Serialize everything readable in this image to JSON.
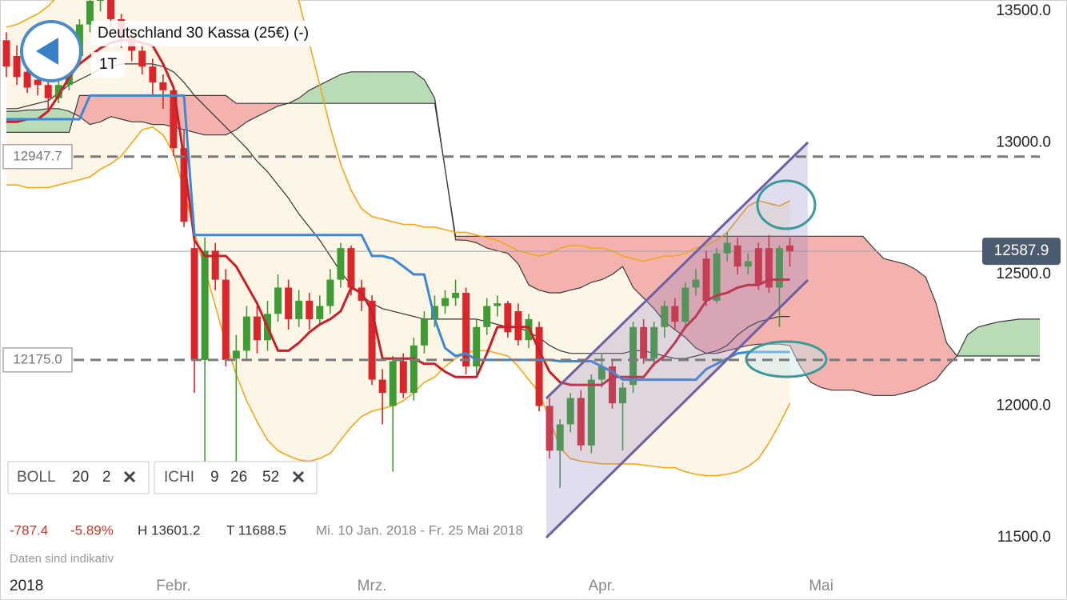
{
  "chart_data": {
    "type": "candlestick",
    "title": "Deutschland 30 Kassa (25€) (-)",
    "interval": "1T",
    "year": "2018",
    "categories": [
      null,
      null,
      null,
      null,
      null,
      null,
      null,
      null,
      null,
      null,
      null,
      null,
      null,
      null,
      null,
      null,
      "Febr.",
      null,
      null,
      null,
      null,
      null,
      null,
      null,
      null,
      null,
      null,
      null,
      null,
      null,
      null,
      null,
      null,
      null,
      null,
      "Mrz.",
      null,
      null,
      null,
      null,
      null,
      null,
      null,
      null,
      null,
      null,
      null,
      null,
      null,
      null,
      null,
      null,
      null,
      null,
      null,
      null,
      null,
      "Apr.",
      null,
      null,
      null,
      null,
      null,
      null,
      null,
      null,
      null,
      null,
      null,
      null,
      null,
      null,
      null,
      null,
      null,
      null,
      null,
      null,
      "Mai",
      null,
      null,
      null,
      null,
      null,
      null,
      null,
      null,
      null,
      null,
      null,
      null,
      null,
      null,
      null,
      null,
      null,
      null,
      null,
      null,
      null
    ],
    "open": [
      13390,
      13330,
      13270,
      13240,
      13220,
      13170,
      13220,
      13330,
      13450,
      13540,
      13580,
      13470,
      13400,
      13350,
      13290,
      13230,
      13200,
      12980,
      12600,
      12175,
      12590,
      12480,
      12180,
      12210,
      12340,
      12250,
      12350,
      12450,
      12330,
      12400,
      12330,
      12380,
      12480,
      12600,
      12450,
      12400,
      12100,
      12000,
      12170,
      12050,
      12230,
      12330,
      12380,
      12410,
      12430,
      12150,
      12300,
      12380,
      12390,
      12360,
      12250,
      12300,
      12000,
      11830,
      11930,
      12030,
      11850,
      12100,
      12150,
      12010,
      12080,
      12300,
      12180,
      12300,
      12380,
      12320,
      12450,
      12560,
      12400,
      12580,
      12610,
      12530,
      12600,
      12600,
      12450,
      12610,
      null,
      null,
      null,
      null,
      null,
      null,
      null,
      null,
      null,
      null,
      null,
      null,
      null,
      null,
      null,
      null,
      null,
      null,
      null,
      null,
      null,
      null,
      null,
      null
    ],
    "high": [
      13420,
      13370,
      13300,
      13280,
      13240,
      13240,
      13350,
      13470,
      13560,
      13590,
      13601.2,
      13490,
      13430,
      13380,
      13320,
      13260,
      13210,
      13050,
      12660,
      12640,
      12620,
      12520,
      12270,
      12380,
      12380,
      12400,
      12500,
      12480,
      12440,
      12430,
      12420,
      12520,
      12620,
      12610,
      12480,
      12420,
      12140,
      12190,
      12200,
      12260,
      12360,
      12420,
      12440,
      12480,
      12450,
      12330,
      12410,
      12420,
      12400,
      12390,
      12350,
      12320,
      12030,
      11950,
      12050,
      12060,
      12120,
      12200,
      12170,
      12090,
      12320,
      12330,
      12320,
      12400,
      12410,
      12470,
      12520,
      12590,
      12600,
      12660,
      12640,
      12580,
      12620,
      12650,
      12610,
      12640,
      null,
      null,
      null,
      null,
      null,
      null,
      null,
      null,
      null,
      null,
      null,
      null,
      null,
      null,
      null,
      null,
      null,
      null,
      null,
      null,
      null,
      null,
      null,
      null
    ],
    "low": [
      13250,
      13220,
      13190,
      13180,
      13130,
      13150,
      13200,
      13300,
      13420,
      13500,
      13440,
      13360,
      13310,
      13260,
      13180,
      13130,
      12950,
      12680,
      12050,
      11760,
      12440,
      12150,
      11730,
      12180,
      12200,
      12210,
      12320,
      12290,
      12300,
      12290,
      12310,
      12350,
      12450,
      12420,
      12360,
      12080,
      11930,
      11750,
      12030,
      12020,
      12200,
      12300,
      12350,
      12380,
      12120,
      12120,
      12270,
      12340,
      12260,
      12230,
      12220,
      11980,
      11800,
      11688.5,
      11900,
      11830,
      11820,
      12070,
      11990,
      11830,
      12050,
      12160,
      12150,
      12260,
      12290,
      12300,
      12420,
      12380,
      12390,
      12550,
      12500,
      12500,
      12440,
      12430,
      12300,
      12530,
      null,
      null,
      null,
      null,
      null,
      null,
      null,
      null,
      null,
      null,
      null,
      null,
      null,
      null,
      null,
      null,
      null,
      null,
      null,
      null,
      null,
      null,
      null,
      null
    ],
    "close": [
      13290,
      13250,
      13210,
      13220,
      13170,
      13220,
      13330,
      13450,
      13540,
      13580,
      13470,
      13400,
      13350,
      13290,
      13230,
      13200,
      12980,
      12700,
      12175,
      12590,
      12480,
      12175,
      12210,
      12340,
      12250,
      12350,
      12450,
      12330,
      12400,
      12330,
      12380,
      12480,
      12600,
      12450,
      12400,
      12100,
      12050,
      12170,
      12050,
      12230,
      12330,
      12380,
      12410,
      12430,
      12150,
      12300,
      12380,
      12390,
      12280,
      12250,
      12330,
      12000,
      11830,
      11930,
      12030,
      11850,
      12100,
      12150,
      12010,
      12070,
      12300,
      12180,
      12300,
      12380,
      12320,
      12450,
      12480,
      12400,
      12580,
      12620,
      12530,
      12550,
      12460,
      12450,
      12600,
      12587.9,
      null,
      null,
      null,
      null,
      null,
      null,
      null,
      null,
      null,
      null,
      null,
      null,
      null,
      null,
      null,
      null,
      null,
      null,
      null,
      null,
      null,
      null,
      null,
      null
    ],
    "up_color": "#3f9c35",
    "down_color": "#d9262b",
    "bollinger": {
      "color": "#f0a81e",
      "middle_color": "#333333",
      "fill": "#fdf5e6",
      "upper": [
        13440,
        13450,
        13470,
        13490,
        13520,
        13560,
        13610,
        13660,
        13700,
        13740,
        13770,
        13790,
        13800,
        13800,
        13790,
        13780,
        13770,
        13760,
        13760,
        13750,
        13740,
        13730,
        13720,
        13700,
        13680,
        13650,
        13620,
        13590,
        13540,
        13380,
        13220,
        13060,
        12920,
        12820,
        12750,
        12720,
        12710,
        12700,
        12690,
        12690,
        12680,
        12680,
        12670,
        12660,
        12660,
        12650,
        12640,
        12630,
        12610,
        12590,
        12580,
        12570,
        12580,
        12600,
        12610,
        12610,
        12600,
        12600,
        12590,
        12570,
        12560,
        12550,
        12560,
        12570,
        12570,
        12580,
        12600,
        12610,
        12630,
        12660,
        12710,
        12760,
        12780,
        12770,
        12760,
        12780,
        null,
        null,
        null,
        null,
        null,
        null,
        null,
        null,
        null,
        null,
        null,
        null,
        null,
        null,
        null,
        null,
        null,
        null,
        null,
        null,
        null,
        null,
        null,
        null
      ],
      "middle": [
        13130,
        13130,
        13140,
        13150,
        13160,
        13190,
        13220,
        13240,
        13260,
        13280,
        13290,
        13300,
        13300,
        13300,
        13300,
        13290,
        13270,
        13230,
        13180,
        13140,
        13100,
        13060,
        13020,
        12980,
        12930,
        12890,
        12840,
        12790,
        12730,
        12680,
        12630,
        12570,
        12510,
        12460,
        12420,
        12390,
        12370,
        12360,
        12350,
        12340,
        12330,
        12330,
        12330,
        12330,
        12330,
        12330,
        12320,
        12310,
        12300,
        12300,
        12280,
        12260,
        12230,
        12210,
        12200,
        12200,
        12200,
        12200,
        12200,
        12200,
        12210,
        12210,
        12200,
        12190,
        12180,
        12180,
        12190,
        12200,
        12210,
        12230,
        12270,
        12300,
        12320,
        12330,
        12340,
        12340,
        null,
        null,
        null,
        null,
        null,
        null,
        null,
        null,
        null,
        null,
        null,
        null,
        null,
        null,
        null,
        null,
        null,
        null,
        null,
        null,
        null,
        null,
        null,
        null
      ],
      "lower": [
        12840,
        12840,
        12830,
        12830,
        12830,
        12840,
        12850,
        12860,
        12870,
        12900,
        12920,
        12950,
        13000,
        13050,
        13060,
        13030,
        12960,
        12820,
        12660,
        12520,
        12380,
        12240,
        12120,
        12020,
        11940,
        11870,
        11830,
        11810,
        11795,
        11790,
        11800,
        11820,
        11870,
        11920,
        11960,
        11980,
        11990,
        12000,
        12020,
        12050,
        12090,
        12110,
        12150,
        12180,
        12200,
        12210,
        12210,
        12200,
        12190,
        12150,
        12100,
        12050,
        11950,
        11840,
        11800,
        11790,
        11785,
        11780,
        11780,
        11780,
        11780,
        11775,
        11770,
        11765,
        11765,
        11750,
        11740,
        11735,
        11735,
        11740,
        11750,
        11770,
        11800,
        11860,
        11930,
        12010,
        null,
        null,
        null,
        null,
        null,
        null,
        null,
        null,
        null,
        null,
        null,
        null,
        null,
        null,
        null,
        null,
        null,
        null,
        null,
        null,
        null,
        null,
        null,
        null
      ]
    },
    "ichimoku": {
      "tenkan_color": "#c8202a",
      "kijun_color": "#3c88d4",
      "edge_color": "#3a3a3a",
      "bull_fill": "#b9dcb6",
      "bear_fill": "#f3b2ae",
      "tenkan": [
        13080,
        13080,
        13090,
        13090,
        13120,
        13180,
        13250,
        13300,
        13330,
        13360,
        13380,
        13390,
        13390,
        13380,
        13370,
        13300,
        13210,
        12940,
        12630,
        12570,
        12570,
        12570,
        12530,
        12460,
        12390,
        12300,
        12210,
        12210,
        12240,
        12280,
        12310,
        12330,
        12360,
        12450,
        12430,
        12360,
        12180,
        12180,
        12180,
        12180,
        12160,
        12160,
        12130,
        12110,
        12110,
        12110,
        12200,
        12300,
        12300,
        12300,
        12300,
        12210,
        12130,
        12090,
        12080,
        12080,
        12080,
        12080,
        12110,
        12110,
        12110,
        12110,
        12160,
        12190,
        12240,
        12300,
        12340,
        12400,
        12420,
        12430,
        12450,
        12460,
        12460,
        12480,
        12480,
        12480,
        null,
        null,
        null,
        null,
        null,
        null,
        null,
        null,
        null,
        null,
        null,
        null,
        null,
        null,
        null,
        null,
        null,
        null,
        null,
        null,
        null,
        null,
        null,
        null
      ],
      "kijun": [
        13090,
        13090,
        13090,
        13090,
        13090,
        13090,
        13090,
        13090,
        13180,
        13180,
        13180,
        13180,
        13180,
        13180,
        13180,
        13180,
        13180,
        13180,
        12650,
        12650,
        12650,
        12650,
        12650,
        12650,
        12650,
        12650,
        12650,
        12650,
        12650,
        12650,
        12650,
        12650,
        12650,
        12650,
        12650,
        12570,
        12570,
        12560,
        12530,
        12500,
        12500,
        12330,
        12220,
        12190,
        12200,
        12175,
        12175,
        12175,
        12175,
        12175,
        12175,
        12175,
        12175,
        12170,
        12170,
        12170,
        12170,
        12150,
        12130,
        12100,
        12100,
        12100,
        12100,
        12100,
        12100,
        12100,
        12100,
        12140,
        12160,
        12180,
        12200,
        12205,
        12205,
        12205,
        12205,
        12205,
        null,
        null,
        null,
        null,
        null,
        null,
        null,
        null,
        null,
        null,
        null,
        null,
        null,
        null,
        null,
        null,
        null,
        null,
        null,
        null,
        null,
        null,
        null,
        null
      ],
      "senkou_a": [
        13120,
        13120,
        13125,
        13125,
        13130,
        13130,
        13120,
        13100,
        13070,
        13080,
        13100,
        13090,
        13080,
        13080,
        13070,
        13070,
        13060,
        13050,
        13040,
        13030,
        13030,
        13030,
        13050,
        13080,
        13100,
        13120,
        13140,
        13150,
        13170,
        13200,
        13220,
        13240,
        13260,
        13270,
        13270,
        13270,
        13270,
        13270,
        13270,
        13270,
        13240,
        13170,
        12900,
        12631,
        12630,
        12620,
        12600,
        12590,
        12580,
        12540,
        12460,
        12440,
        12430,
        12430,
        12440,
        12450,
        12470,
        12480,
        12500,
        12530,
        12450,
        12410,
        12370,
        12320,
        12290,
        12260,
        12220,
        12200,
        12200,
        12210,
        12220,
        12230,
        12235,
        12235,
        12235,
        12230,
        12150,
        12090,
        12070,
        12060,
        12060,
        12060,
        12050,
        12040,
        12040,
        12040,
        12050,
        12060,
        12080,
        12100,
        12150,
        12190,
        12270,
        12300,
        12310,
        12320,
        12325,
        12330,
        12330,
        12330
      ],
      "senkou_b": [
        13040,
        13040,
        13040,
        13040,
        13040,
        13040,
        13040,
        13180,
        13180,
        13180,
        13180,
        13180,
        13180,
        13180,
        13180,
        13180,
        13180,
        13180,
        13180,
        13180,
        13180,
        13180,
        13150,
        13150,
        13150,
        13150,
        13150,
        13150,
        13150,
        13150,
        13150,
        13150,
        13150,
        13150,
        13150,
        13150,
        13150,
        13150,
        13150,
        13150,
        13150,
        13150,
        12900,
        12645,
        12645,
        12645,
        12645,
        12645,
        12645,
        12645,
        12645,
        12645,
        12645,
        12645,
        12645,
        12645,
        12645,
        12645,
        12645,
        12645,
        12645,
        12645,
        12645,
        12645,
        12645,
        12645,
        12645,
        12645,
        12645,
        12645,
        12645,
        12645,
        12645,
        12645,
        12645,
        12645,
        12645,
        12645,
        12645,
        12645,
        12645,
        12645,
        12645,
        12600,
        12560,
        12550,
        12540,
        12520,
        12490,
        12390,
        12240,
        12190,
        12190,
        12190,
        12190,
        12190,
        12190,
        12190,
        12190,
        12190
      ]
    },
    "price_lines": [
      12947.7,
      {
        "value": 12175,
        "label": "12175.0"
      }
    ],
    "current_price": 12587.9,
    "ylim": [
      11378,
      13543
    ],
    "yticks": [
      {
        "value": 11500,
        "label": "11500.0"
      },
      {
        "value": 12000,
        "label": "12000.0"
      },
      {
        "value": 12500,
        "label": "12500.0"
      },
      {
        "value": 13000,
        "label": "13000.0"
      },
      {
        "value": 13500,
        "label": "13500.0"
      }
    ],
    "indicators": [
      {
        "name": "BOLL",
        "params": [
          20,
          2
        ]
      },
      {
        "name": "ICHI",
        "params": [
          9,
          26,
          52
        ]
      }
    ],
    "stats": {
      "change": "-787.4",
      "change_pct": "-5.89%",
      "high": "H 13601.2",
      "low": "T 11688.5",
      "range": "Mi. 10 Jan. 2018 - Fr. 25 Mai 2018"
    },
    "note": "Daten sind indikativ"
  }
}
